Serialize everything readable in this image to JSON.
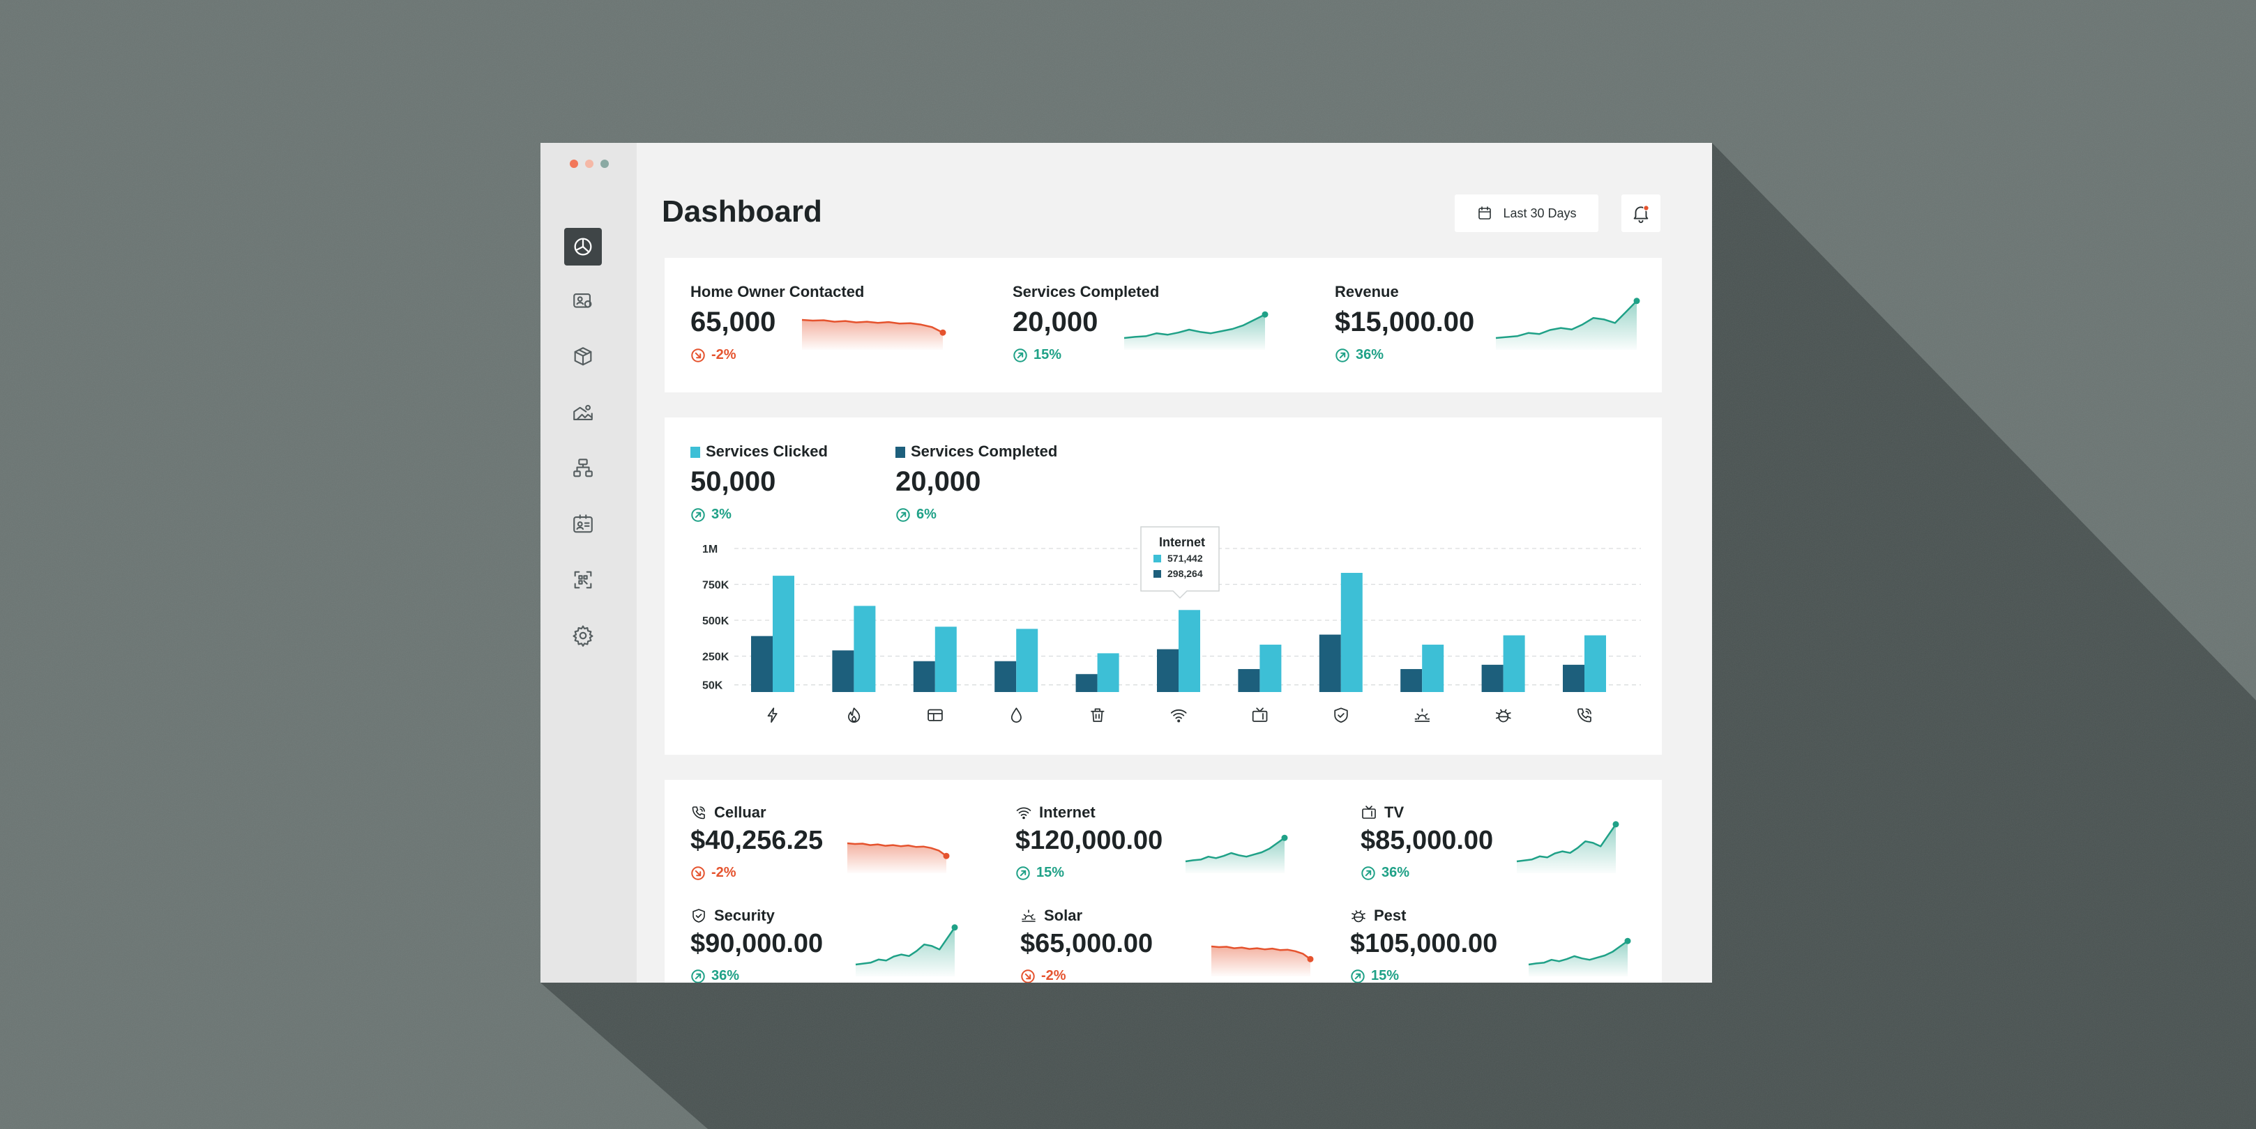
{
  "window": {
    "traffic_lights": [
      "#f2775a",
      "#f5b8a6",
      "#8aa9a3"
    ]
  },
  "sidebar": {
    "items": [
      {
        "icon": "pie-chart-icon",
        "active": true
      },
      {
        "icon": "id-card-icon",
        "active": false
      },
      {
        "icon": "box-icon",
        "active": false
      },
      {
        "icon": "landscape-icon",
        "active": false
      },
      {
        "icon": "org-chart-icon",
        "active": false
      },
      {
        "icon": "contact-card-icon",
        "active": false
      },
      {
        "icon": "scan-icon",
        "active": false
      },
      {
        "icon": "gear-icon",
        "active": false
      }
    ]
  },
  "header": {
    "title": "Dashboard",
    "date_range": "Last 30 Days",
    "calendar_icon": "calendar-icon",
    "notification_icon": "bell-icon"
  },
  "kpis": [
    {
      "label": "Home Owner Contacted",
      "value": "65,000",
      "change": "-2%",
      "trend": "down"
    },
    {
      "label": "Services Completed",
      "value": "20,000",
      "change": "15%",
      "trend": "up"
    },
    {
      "label": "Revenue",
      "value": "$15,000.00",
      "change": "36%",
      "trend": "up"
    }
  ],
  "chart_summary": [
    {
      "label": "Services Clicked",
      "value": "50,000",
      "change": "3%",
      "color": "#3dbfd6"
    },
    {
      "label": "Services Completed",
      "value": "20,000",
      "change": "6%",
      "color": "#1d5f7c"
    }
  ],
  "chart_data": {
    "type": "bar",
    "categories": [
      "electricity",
      "gas",
      "window",
      "water",
      "trash",
      "internet",
      "tv",
      "security",
      "solar",
      "pest",
      "cellular"
    ],
    "category_icons": [
      "bolt-icon",
      "flame-icon",
      "window-icon",
      "drop-icon",
      "trash-icon",
      "wifi-icon",
      "tv-icon",
      "shield-icon",
      "sunrise-icon",
      "bug-icon",
      "phone-icon"
    ],
    "series": [
      {
        "name": "Services Completed",
        "color": "#1d5f7c",
        "values": [
          390000,
          290000,
          215000,
          215000,
          125000,
          298264,
          160000,
          400000,
          160000,
          190000,
          190000
        ]
      },
      {
        "name": "Services Clicked",
        "color": "#3dbfd6",
        "values": [
          810000,
          600000,
          455000,
          440000,
          270000,
          571442,
          330000,
          830000,
          330000,
          395000,
          395000
        ]
      }
    ],
    "y_ticks": [
      {
        "label": "1M",
        "value": 1000000
      },
      {
        "label": "750K",
        "value": 750000
      },
      {
        "label": "500K",
        "value": 500000
      },
      {
        "label": "250K",
        "value": 250000
      },
      {
        "label": "50K",
        "value": 50000
      }
    ],
    "ylim": [
      0,
      1000000
    ],
    "grid": true,
    "tooltip": {
      "category": "Internet",
      "index": 5,
      "lines": [
        "571,442",
        "298,264"
      ]
    }
  },
  "services": [
    {
      "label": "Celluar",
      "icon": "phone-icon",
      "value": "$40,256.25",
      "change": "-2%",
      "trend": "down"
    },
    {
      "label": "Internet",
      "icon": "wifi-icon",
      "value": "$120,000.00",
      "change": "15%",
      "trend": "up"
    },
    {
      "label": "TV",
      "icon": "tv-icon",
      "value": "$85,000.00",
      "change": "36%",
      "trend": "up"
    },
    {
      "label": "Security",
      "icon": "shield-icon",
      "value": "$90,000.00",
      "change": "36%",
      "trend": "up"
    },
    {
      "label": "Solar",
      "icon": "sunrise-icon",
      "value": "$65,000.00",
      "change": "-2%",
      "trend": "down"
    },
    {
      "label": "Pest",
      "icon": "bug-icon",
      "value": "$105,000.00",
      "change": "15%",
      "trend": "up"
    }
  ],
  "colors": {
    "up": "#1fa187",
    "down": "#e5532e",
    "clicked": "#3dbfd6",
    "completed": "#1d5f7c"
  }
}
